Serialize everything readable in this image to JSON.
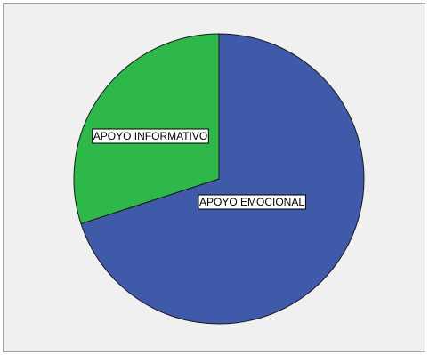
{
  "chart_data": {
    "type": "pie",
    "categories": [
      "APOYO EMOCIONAL",
      "APOYO INFORMATIVO"
    ],
    "values": [
      70,
      30
    ],
    "colors": [
      "#3f5aa9",
      "#2eb84a"
    ],
    "title": "",
    "legend": "none",
    "labels_on_slices": true,
    "start_angle": "12 o'clock",
    "direction": "clockwise"
  }
}
